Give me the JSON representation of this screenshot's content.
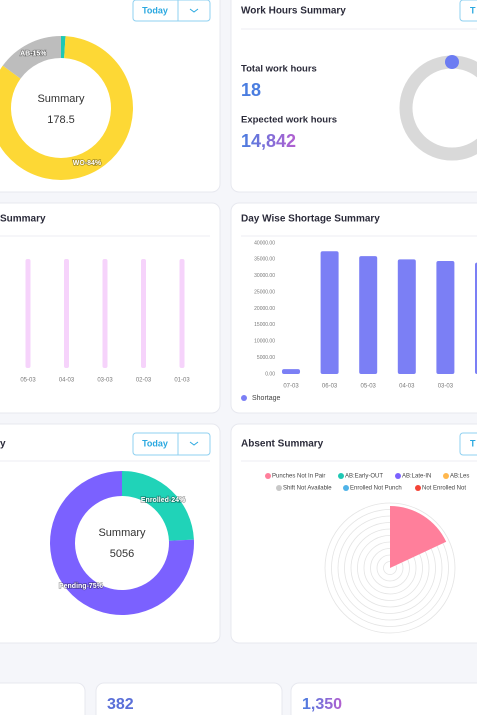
{
  "status_summary": {
    "button": "Today",
    "center_title": "Summary",
    "center_value": "178.5",
    "segments": [
      {
        "value": 1,
        "color": "#1fc8b4"
      },
      {
        "label": "WO-84%",
        "value": 84,
        "color": "#fdd835"
      },
      {
        "label": "AB-15%",
        "value": 15,
        "color": "#bdbdbd"
      }
    ]
  },
  "work_hours": {
    "title": "Work Hours Summary",
    "button": "T",
    "total_label": "Total work hours",
    "total_value": "18",
    "expected_label": "Expected work hours",
    "expected_value": "14,842"
  },
  "summary_bars": {
    "title": "Summary",
    "categories": [
      "05-03",
      "04-03",
      "03-03",
      "02-03",
      "01-03"
    ]
  },
  "shortage": {
    "title": "Day Wise Shortage Summary",
    "type": "bar",
    "categories": [
      "07-03",
      "06-03",
      "05-03",
      "04-03",
      "03-03",
      null
    ],
    "values": [
      1500,
      37500,
      36000,
      35000,
      34500,
      34000
    ],
    "color": "#7b7ff5",
    "ylim": [
      0,
      40000
    ],
    "yticks": [
      {
        "value": 0,
        "label": "0.00"
      },
      {
        "value": 5000,
        "label": "5000.00"
      },
      {
        "value": 10000,
        "label": "10000.00"
      },
      {
        "value": 15000,
        "label": "15000.00"
      },
      {
        "value": 20000,
        "label": "20000.00"
      },
      {
        "value": 25000,
        "label": "25000.00"
      },
      {
        "value": 30000,
        "label": "30000.00"
      },
      {
        "value": 35000,
        "label": "35000.00"
      },
      {
        "value": 40000,
        "label": "40000.00"
      }
    ],
    "legend": "Shortage"
  },
  "enrollment": {
    "title": "y",
    "button": "Today",
    "center_title": "Summary",
    "center_value": "5056",
    "segments": [
      {
        "label": "Enrolled-24%",
        "value": 24,
        "color": "#20d3b8"
      },
      {
        "label": "Pending-75%",
        "value": 75,
        "color": "#7b61ff"
      }
    ]
  },
  "absent": {
    "title": "Absent Summary",
    "button": "T",
    "legend": [
      {
        "name": "Punches Not In Pair",
        "color": "#ff7f9b"
      },
      {
        "name": "AB:Early-OUT",
        "color": "#1fc8b4"
      },
      {
        "name": "AB:Late-IN",
        "color": "#7b61ff"
      },
      {
        "name": "AB:Les",
        "color": "#ffb74d"
      },
      {
        "name": "Shift Not Available",
        "color": "#c8c8c8"
      },
      {
        "name": "Enrolled Not Punch",
        "color": "#4fb3e8"
      },
      {
        "name": "Not Enrolled Not",
        "color": "#f44336"
      }
    ]
  },
  "stats": [
    "382",
    "1,350"
  ]
}
